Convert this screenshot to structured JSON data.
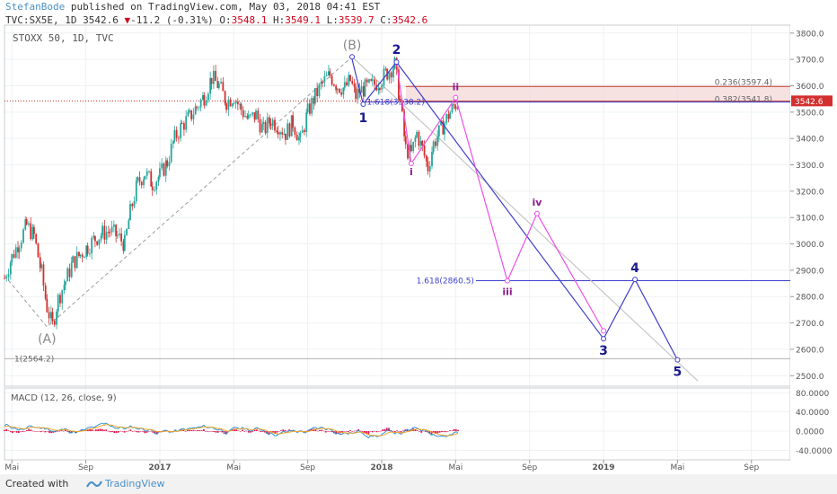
{
  "header": {
    "author": "StefanBode",
    "published": " published on TradingView.com, May 03, 2018 04:41 EST",
    "symbol_line_prefix": "TVC:SX5E, 1D 3542.6 ",
    "change": "▼",
    "change_value": "-11.2 (-0.31%)",
    "o_label": " O:",
    "o": "3548.1",
    "h_label": " H:",
    "h": "3549.1",
    "l_label": " L:",
    "l": "3539.7",
    "c_label": " C:",
    "c": "3542.6"
  },
  "chart_label": "STOXX 50, 1D, TVC",
  "footer": {
    "created": "Created with",
    "brand": "TradingView"
  },
  "colors": {
    "up": "#26a69a",
    "down": "#d32f2f",
    "wave_primary": "#3f3fcf",
    "wave_alt": "#ef4ee6",
    "fib_line": "#3f3fcf",
    "fib_red": "#c0392b",
    "grey": "#9e9e9e",
    "macd_line": "#2f8fd8",
    "signal_line": "#f5a623",
    "hist": "#e0194f"
  },
  "chart_data": {
    "type": "candlestick",
    "symbol": "TVC:SX5E",
    "interval": "1D",
    "last": {
      "open": 3548.1,
      "high": 3549.1,
      "low": 3539.7,
      "close": 3542.6,
      "change": -11.2,
      "change_pct": -0.31
    },
    "price_axis": {
      "ticks": [
        2500,
        2600,
        2700,
        2800,
        2900,
        3000,
        3100,
        3200,
        3300,
        3400,
        3500,
        3600,
        3700,
        3800
      ],
      "tick_labels": [
        "2500.0",
        "2600.0",
        "2700.0",
        "2800.0",
        "2900.0",
        "3000.0",
        "3100.0",
        "3200.0",
        "3300.0",
        "3400.0",
        "3500.0",
        "3600.0",
        "3700.0",
        "3800.0"
      ],
      "last_label": "3542.6",
      "range": [
        2460,
        3830
      ]
    },
    "time_axis": {
      "labels": [
        "Mai",
        "Sep",
        "2017",
        "Mai",
        "Sep",
        "2018",
        "Mai",
        "Sep",
        "2019",
        "Mai",
        "Sep"
      ],
      "month_index": [
        4,
        8,
        12,
        16,
        20,
        24,
        28,
        32,
        36,
        40,
        44
      ],
      "range_months": [
        3.6,
        46.1
      ]
    },
    "price_path": [
      [
        3.6,
        2870
      ],
      [
        4.0,
        2950
      ],
      [
        4.4,
        3010
      ],
      [
        4.8,
        3070
      ],
      [
        5.2,
        3030
      ],
      [
        5.6,
        2890
      ],
      [
        5.9,
        2760
      ],
      [
        6.2,
        2690
      ],
      [
        6.5,
        2790
      ],
      [
        6.9,
        2860
      ],
      [
        7.3,
        2930
      ],
      [
        7.7,
        2960
      ],
      [
        8.1,
        2990
      ],
      [
        8.5,
        3020
      ],
      [
        8.9,
        3040
      ],
      [
        9.3,
        3050
      ],
      [
        9.7,
        3030
      ],
      [
        10.1,
        3000
      ],
      [
        10.4,
        3120
      ],
      [
        10.8,
        3230
      ],
      [
        11.2,
        3270
      ],
      [
        11.6,
        3230
      ],
      [
        12.0,
        3260
      ],
      [
        12.4,
        3310
      ],
      [
        12.8,
        3400
      ],
      [
        13.2,
        3450
      ],
      [
        13.6,
        3480
      ],
      [
        14.0,
        3520
      ],
      [
        14.4,
        3560
      ],
      [
        14.8,
        3630
      ],
      [
        15.2,
        3600
      ],
      [
        15.6,
        3540
      ],
      [
        16.0,
        3560
      ],
      [
        16.4,
        3510
      ],
      [
        16.8,
        3470
      ],
      [
        17.2,
        3490
      ],
      [
        17.6,
        3430
      ],
      [
        18.0,
        3470
      ],
      [
        18.4,
        3450
      ],
      [
        18.8,
        3420
      ],
      [
        19.2,
        3460
      ],
      [
        19.6,
        3390
      ],
      [
        20.0,
        3500
      ],
      [
        20.4,
        3560
      ],
      [
        20.8,
        3610
      ],
      [
        21.2,
        3640
      ],
      [
        21.6,
        3600
      ],
      [
        22.0,
        3590
      ],
      [
        22.3,
        3620
      ],
      [
        22.6,
        3560
      ],
      [
        22.8,
        3580
      ],
      [
        23.1,
        3590
      ],
      [
        23.5,
        3600
      ],
      [
        23.9,
        3620
      ],
      [
        24.3,
        3650
      ],
      [
        24.7,
        3680
      ],
      [
        25.0,
        3540
      ],
      [
        25.3,
        3360
      ],
      [
        25.6,
        3340
      ],
      [
        25.9,
        3420
      ],
      [
        26.2,
        3360
      ],
      [
        26.5,
        3290
      ],
      [
        26.8,
        3380
      ],
      [
        27.1,
        3420
      ],
      [
        27.4,
        3460
      ],
      [
        27.7,
        3500
      ],
      [
        28.0,
        3530
      ],
      [
        28.2,
        3542.6
      ]
    ],
    "annotations": {
      "elliott_major": [
        {
          "label": "(A)",
          "month": 5.9,
          "price": 2685
        },
        {
          "label": "(B)",
          "month": 22.4,
          "price": 3710
        }
      ],
      "elliott_primary": [
        {
          "label": "1",
          "month": 23.0,
          "price": 3530
        },
        {
          "label": "2",
          "month": 24.8,
          "price": 3690
        },
        {
          "label": "3",
          "month": 36.0,
          "price": 2640
        },
        {
          "label": "4",
          "month": 37.7,
          "price": 2865
        },
        {
          "label": "5",
          "month": 40.0,
          "price": 2560
        }
      ],
      "elliott_alt": [
        {
          "label": "i",
          "month": 25.6,
          "price": 3305
        },
        {
          "label": "ii",
          "month": 28.0,
          "price": 3555
        },
        {
          "label": "iii",
          "month": 30.8,
          "price": 2860
        },
        {
          "label": "iv",
          "month": 32.4,
          "price": 3115
        },
        {
          "label": "",
          "month": 36.0,
          "price": 2670
        }
      ],
      "fib_levels": [
        {
          "label": "0.236(3597.4)",
          "price": 3597.4
        },
        {
          "label": "0.382(3541.8)",
          "price": 3541.8
        },
        {
          "label": "1.618(3538.2)",
          "price": 3538.2
        },
        {
          "label": "1.618(2860.5)",
          "price": 2860.5
        },
        {
          "label": "1(2564.2)",
          "price": 2564.2
        }
      ]
    },
    "macd": {
      "title": "MACD (12, 26, close, 9)",
      "ticks": [
        80,
        40,
        0,
        -40
      ],
      "tick_labels": [
        "80.0000",
        "40.0000",
        "0.0000",
        "-40.0000"
      ],
      "range": [
        -60,
        90
      ]
    }
  }
}
